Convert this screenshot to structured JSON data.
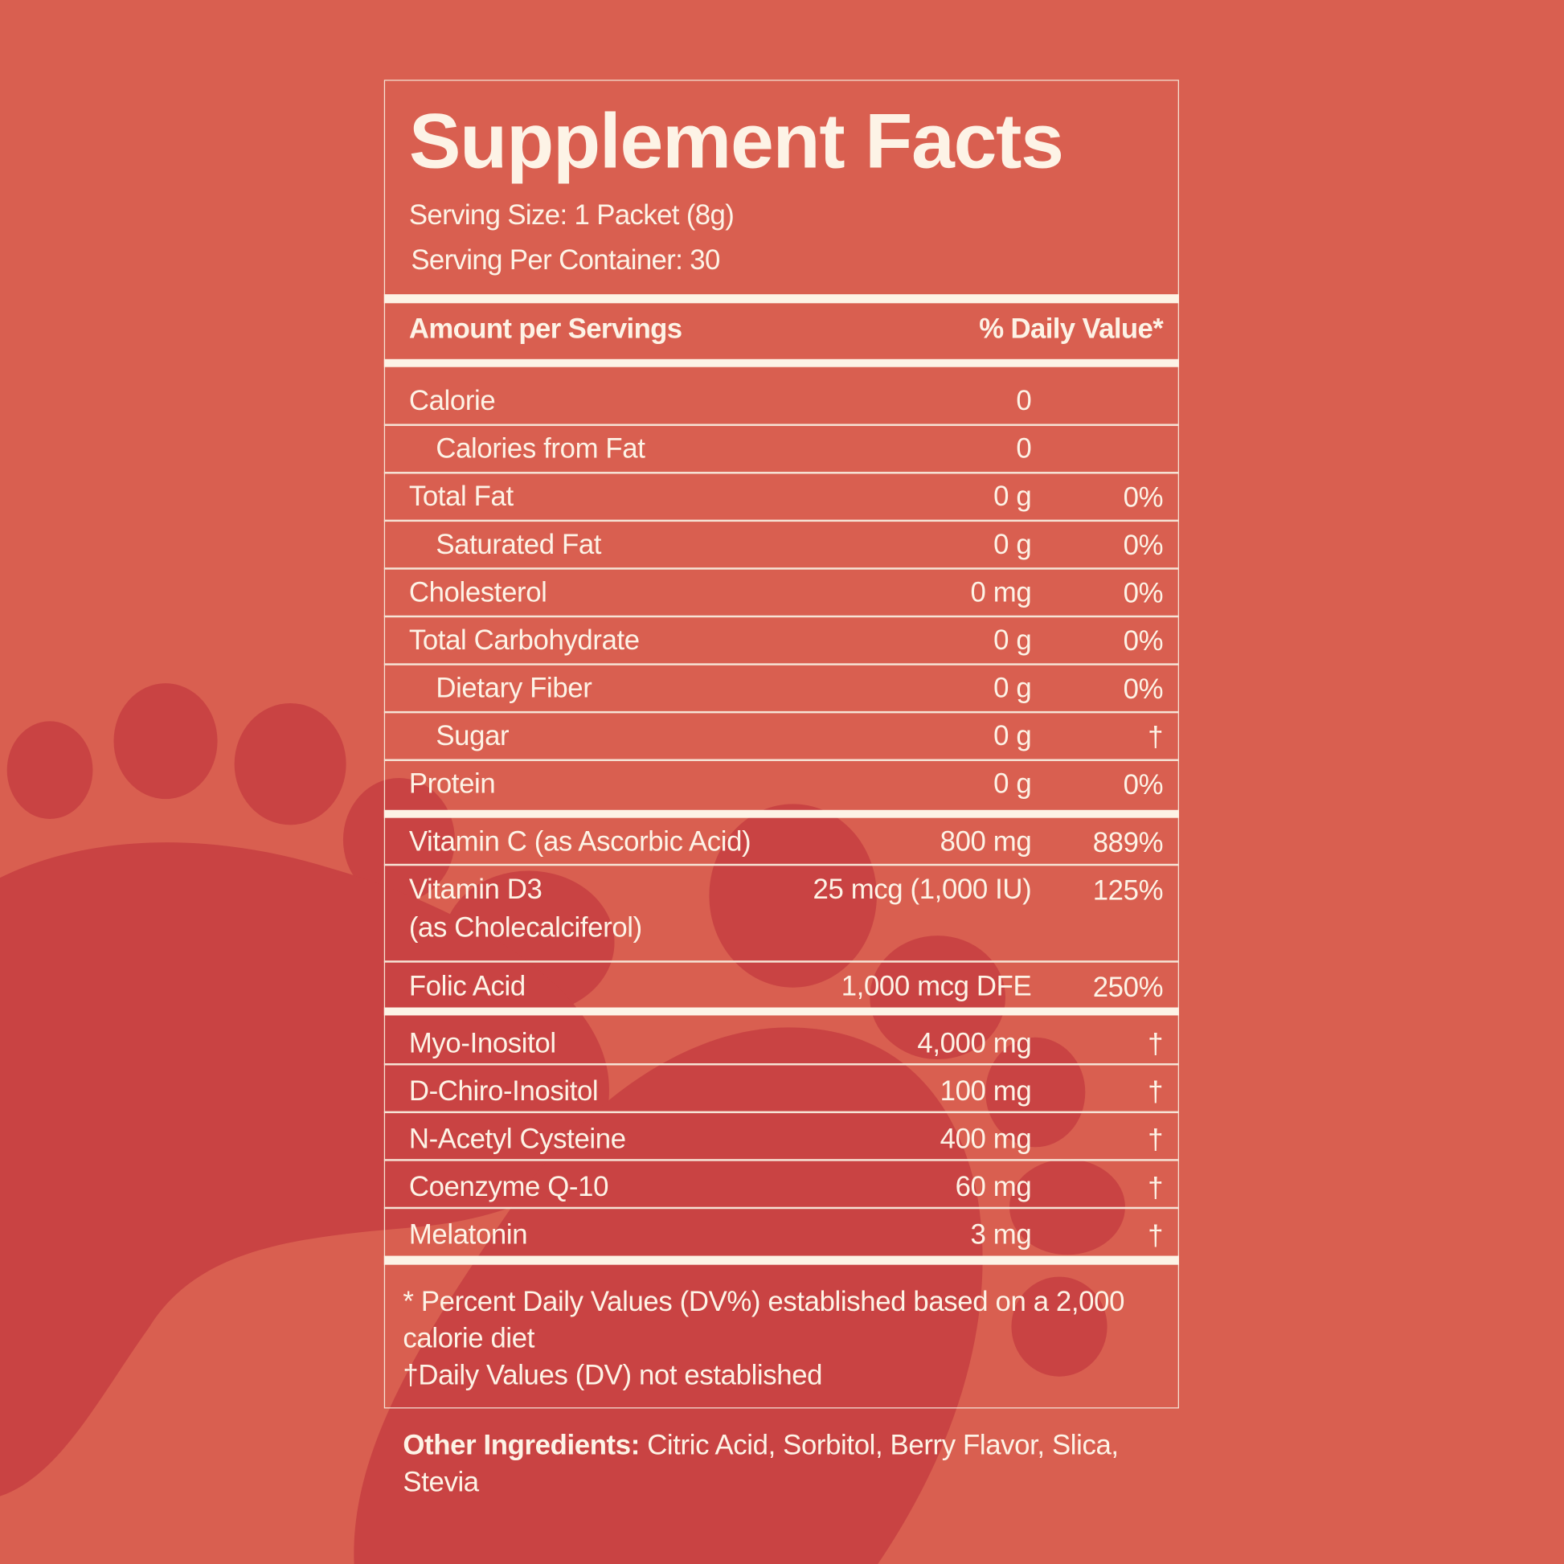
{
  "colors": {
    "background": "#D95F50",
    "paw": "#C94343",
    "text": "#FDF3E6"
  },
  "title": "Supplement Facts",
  "serving_size": "Serving Size: 1 Packet (8g)",
  "servings_per_container": "Serving Per Container: 30",
  "header": {
    "amount": "Amount per Servings",
    "daily_value": "% Daily Value*"
  },
  "rows": [
    {
      "name": "Calorie",
      "amount": "0",
      "dv": ""
    },
    {
      "name": "Calories from Fat",
      "amount": "0",
      "dv": ""
    },
    {
      "name": "Total Fat",
      "amount": "0 g",
      "dv": "0%"
    },
    {
      "name": "Saturated Fat",
      "amount": "0 g",
      "dv": "0%"
    },
    {
      "name": "Cholesterol",
      "amount": "0 mg",
      "dv": "0%"
    },
    {
      "name": "Total Carbohydrate",
      "amount": "0 g",
      "dv": "0%"
    },
    {
      "name": "Dietary Fiber",
      "amount": "0 g",
      "dv": "0%"
    },
    {
      "name": "Sugar",
      "amount": "0 g",
      "dv": "†"
    },
    {
      "name": "Protein",
      "amount": "0 g",
      "dv": "0%"
    },
    {
      "name": "Vitamin C (as Ascorbic Acid)",
      "amount": "800 mg",
      "dv": "889%"
    },
    {
      "name": "Vitamin D3",
      "name2": "(as Cholecalciferol)",
      "amount": "25 mcg (1,000 IU)",
      "dv": "125%"
    },
    {
      "name": "Folic Acid",
      "amount": "1,000 mcg DFE",
      "dv": "250%"
    },
    {
      "name": "Myo-Inositol",
      "amount": "4,000 mg",
      "dv": "†"
    },
    {
      "name": "D-Chiro-Inositol",
      "amount": "100 mg",
      "dv": "†"
    },
    {
      "name": "N-Acetyl Cysteine",
      "amount": "400 mg",
      "dv": "†"
    },
    {
      "name": "Coenzyme Q-10",
      "amount": "60 mg",
      "dv": "†"
    },
    {
      "name": "Melatonin",
      "amount": "3 mg",
      "dv": "†"
    }
  ],
  "footnotes": {
    "dv_note": "* Percent Daily Values (DV%) established based on a 2,000 calorie diet",
    "dagger_note": "†Daily Values (DV) not established"
  },
  "other_ingredients": {
    "label": "Other  Ingredients:",
    "value": " Citric Acid, Sorbitol, Berry Flavor, Slica, Stevia"
  }
}
